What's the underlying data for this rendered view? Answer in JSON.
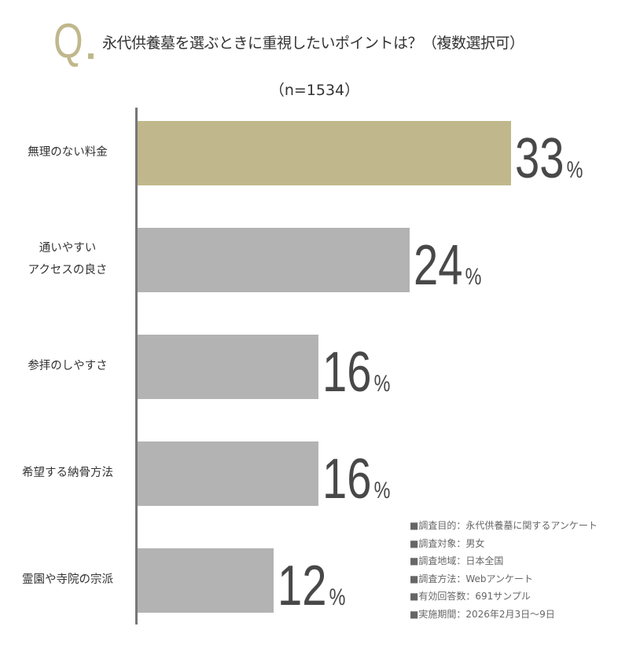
{
  "header": {
    "q_mark": "Q",
    "title": "永代供養墓を選ぶときに重視したいポイントは？（複数選択可）",
    "sample": "（n=1534）"
  },
  "chart_data": {
    "type": "bar",
    "orientation": "horizontal",
    "title": "永代供養墓を選ぶときに重視したいポイントは？（複数選択可）",
    "subtitle": "（n=1534）",
    "categories": [
      "無理のない料金",
      "通いやすい\nアクセスの良さ",
      "参拝のしやすさ",
      "希望する納骨方法",
      "霊園や寺院の宗派"
    ],
    "values": [
      33,
      24,
      16,
      16,
      12
    ],
    "unit": "%",
    "colors": [
      "#c0b88c",
      "#b3b3b3",
      "#b3b3b3",
      "#b3b3b3",
      "#b3b3b3"
    ],
    "grid": false,
    "legend": "none"
  },
  "notes": [
    "■調査目的：永代供養墓に関するアンケート",
    "■調査対象：男女",
    "■調査地域：日本全国",
    "■調査方法：Webアンケート",
    "■有効回答数：691サンプル",
    "■実施期間：2026年2月3日〜9日"
  ]
}
